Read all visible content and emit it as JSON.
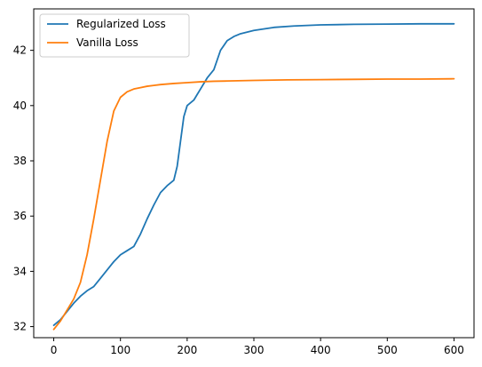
{
  "chart_data": {
    "type": "line",
    "title": "",
    "xlabel": "",
    "ylabel": "",
    "xlim": [
      -30,
      630
    ],
    "ylim": [
      31.6,
      43.5
    ],
    "x_ticks": [
      0,
      100,
      200,
      300,
      400,
      500,
      600
    ],
    "y_ticks": [
      32,
      34,
      36,
      38,
      40,
      42
    ],
    "grid": false,
    "legend_position": "top-left",
    "series": [
      {
        "name": "Regularized Loss",
        "color": "#1f77b4",
        "x": [
          0,
          10,
          20,
          30,
          40,
          50,
          60,
          70,
          80,
          90,
          100,
          110,
          120,
          130,
          140,
          150,
          160,
          170,
          180,
          185,
          190,
          195,
          200,
          205,
          210,
          215,
          220,
          230,
          240,
          250,
          260,
          270,
          280,
          300,
          330,
          360,
          400,
          450,
          500,
          550,
          600
        ],
        "y": [
          32.05,
          32.25,
          32.55,
          32.85,
          33.1,
          33.3,
          33.45,
          33.75,
          34.05,
          34.35,
          34.6,
          34.75,
          34.9,
          35.35,
          35.9,
          36.4,
          36.85,
          37.1,
          37.3,
          37.8,
          38.7,
          39.6,
          40.0,
          40.1,
          40.2,
          40.4,
          40.6,
          41.0,
          41.3,
          42.0,
          42.35,
          42.5,
          42.6,
          42.72,
          42.83,
          42.88,
          42.92,
          42.94,
          42.95,
          42.96,
          42.96
        ]
      },
      {
        "name": "Vanilla Loss",
        "color": "#ff7f0e",
        "x": [
          0,
          10,
          20,
          30,
          40,
          50,
          60,
          70,
          80,
          90,
          100,
          110,
          120,
          130,
          140,
          150,
          160,
          180,
          200,
          220,
          240,
          260,
          300,
          350,
          400,
          450,
          500,
          550,
          600
        ],
        "y": [
          31.9,
          32.2,
          32.6,
          33.0,
          33.6,
          34.6,
          35.9,
          37.3,
          38.7,
          39.8,
          40.3,
          40.5,
          40.6,
          40.65,
          40.7,
          40.73,
          40.76,
          40.8,
          40.83,
          40.86,
          40.88,
          40.89,
          40.91,
          40.93,
          40.94,
          40.95,
          40.96,
          40.96,
          40.97
        ]
      }
    ]
  }
}
